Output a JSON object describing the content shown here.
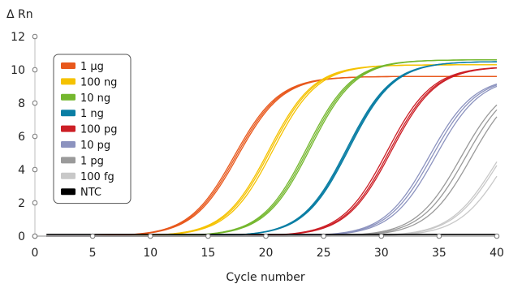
{
  "chart_data": {
    "type": "line",
    "ylabel": "Δ Rn",
    "xlabel": "Cycle number",
    "xlim": [
      0,
      40
    ],
    "ylim": [
      0,
      12
    ],
    "xticks": [
      0,
      5,
      10,
      15,
      20,
      25,
      30,
      35,
      40
    ],
    "yticks": [
      0,
      2,
      4,
      6,
      8,
      10,
      12
    ],
    "grid": false,
    "legend_position": "top-left",
    "series": [
      {
        "name": "1 µg",
        "color": "#e8581c",
        "midpoint": 17.4,
        "plateau": 9.6,
        "slope": 1.95,
        "replicate_offsets": [
          -0.15,
          0,
          0.15
        ]
      },
      {
        "name": "100 ng",
        "color": "#f5c200",
        "midpoint": 20.4,
        "plateau": 10.3,
        "slope": 1.95,
        "replicate_offsets": [
          -0.15,
          0,
          0.2
        ]
      },
      {
        "name": "10 ng",
        "color": "#74b72e",
        "midpoint": 23.7,
        "plateau": 10.6,
        "slope": 1.95,
        "replicate_offsets": [
          -0.15,
          0,
          0.15
        ]
      },
      {
        "name": "1 ng",
        "color": "#0a7ea4",
        "midpoint": 27.1,
        "plateau": 10.5,
        "slope": 1.95,
        "replicate_offsets": [
          -0.1,
          0,
          0.1
        ]
      },
      {
        "name": "100 pg",
        "color": "#cc1f26",
        "midpoint": 30.7,
        "plateau": 10.2,
        "slope": 1.95,
        "replicate_offsets": [
          -0.2,
          0,
          0.15
        ]
      },
      {
        "name": "10 pg",
        "color": "#8c93bf",
        "midpoint": 34.4,
        "plateau": 9.6,
        "slope": 1.95,
        "replicate_offsets": [
          -0.25,
          0,
          0.3
        ]
      },
      {
        "name": "1 pg",
        "color": "#9a9a9a",
        "midpoint": 37.3,
        "plateau": 9.5,
        "slope": 1.95,
        "replicate_offsets": [
          -0.4,
          0,
          0.5
        ]
      },
      {
        "name": "100 fg",
        "color": "#c8c8c8",
        "midpoint": 40.0,
        "plateau": 8.5,
        "slope": 1.95,
        "replicate_offsets": [
          -0.2,
          0,
          0.6
        ]
      },
      {
        "name": "NTC",
        "color": "#000000",
        "flat": true,
        "values": [
          [
            1,
            0.1
          ],
          [
            40,
            0.1
          ]
        ]
      }
    ]
  }
}
